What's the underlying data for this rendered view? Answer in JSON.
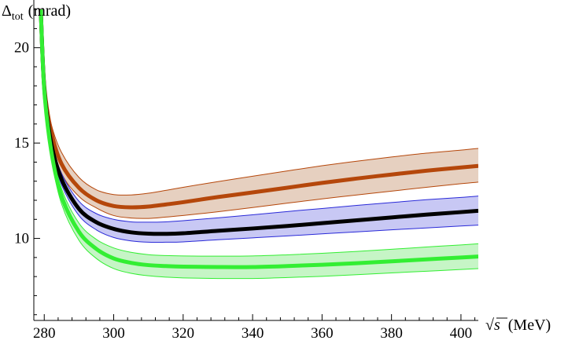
{
  "chart_data": {
    "type": "area",
    "title": "",
    "ylabel": {
      "main": "Δ",
      "sub": "tot",
      "units": "(mrad)"
    },
    "xlabel": {
      "main": "√s",
      "units": "(MeV)"
    },
    "xlim": [
      277,
      405
    ],
    "ylim": [
      5.7,
      22.5
    ],
    "xticks": [
      280,
      300,
      320,
      340,
      360,
      380,
      400
    ],
    "yticks": [
      10,
      15,
      20
    ],
    "x_tick_labels": [
      "280",
      "300",
      "320",
      "340",
      "360",
      "380",
      "400"
    ],
    "y_tick_labels": [
      "10",
      "15",
      "20"
    ],
    "x_minor_step": 4,
    "y_minor_step": 1,
    "grid": false,
    "legend": "none",
    "x": [
      279.0,
      280.0,
      282.0,
      285.0,
      290.0,
      295.0,
      300.0,
      305.0,
      310.0,
      315.0,
      320.0,
      330.0,
      340.0,
      350.0,
      360.0,
      370.0,
      380.0,
      390.0,
      400.0,
      405.0
    ],
    "series": [
      {
        "color": "#b5470b",
        "band_fill": "#e6d0c0",
        "values": [
          22.0,
          18.0,
          15.6,
          13.9,
          12.65,
          12.0,
          11.7,
          11.63,
          11.67,
          11.78,
          11.9,
          12.17,
          12.41,
          12.66,
          12.91,
          13.14,
          13.35,
          13.55,
          13.72,
          13.8
        ],
        "upper": [
          22.0,
          18.0,
          16.0,
          14.5,
          13.2,
          12.55,
          12.3,
          12.28,
          12.37,
          12.52,
          12.68,
          12.98,
          13.26,
          13.54,
          13.81,
          14.05,
          14.27,
          14.47,
          14.63,
          14.72
        ],
        "lower": [
          22.0,
          18.0,
          15.3,
          13.4,
          12.2,
          11.6,
          11.2,
          11.07,
          11.05,
          11.12,
          11.2,
          11.4,
          11.62,
          11.85,
          12.07,
          12.28,
          12.48,
          12.68,
          12.87,
          12.95
        ]
      },
      {
        "color": "#000000",
        "band_fill": "#c8c8f4",
        "values": [
          22.0,
          17.9,
          15.0,
          13.1,
          11.55,
          10.85,
          10.5,
          10.32,
          10.25,
          10.24,
          10.27,
          10.4,
          10.52,
          10.65,
          10.8,
          10.95,
          11.1,
          11.25,
          11.38,
          11.45
        ],
        "upper": [
          22.0,
          17.9,
          15.2,
          13.4,
          11.95,
          11.3,
          11.0,
          10.87,
          10.85,
          10.87,
          10.93,
          11.08,
          11.24,
          11.41,
          11.57,
          11.73,
          11.88,
          12.03,
          12.15,
          12.22
        ],
        "lower": [
          22.0,
          17.9,
          14.8,
          12.8,
          11.2,
          10.45,
          10.05,
          9.87,
          9.8,
          9.8,
          9.82,
          9.93,
          10.03,
          10.13,
          10.24,
          10.34,
          10.45,
          10.55,
          10.65,
          10.7
        ]
      },
      {
        "color": "#33ee33",
        "band_fill": "#c6f5c6",
        "values": [
          22.0,
          17.8,
          14.6,
          12.2,
          10.35,
          9.45,
          8.95,
          8.72,
          8.6,
          8.55,
          8.52,
          8.5,
          8.5,
          8.55,
          8.62,
          8.7,
          8.8,
          8.9,
          9.0,
          9.05
        ],
        "upper": [
          22.0,
          17.8,
          14.9,
          12.6,
          10.8,
          9.95,
          9.5,
          9.27,
          9.15,
          9.1,
          9.08,
          9.07,
          9.08,
          9.14,
          9.22,
          9.32,
          9.43,
          9.55,
          9.66,
          9.72
        ],
        "lower": [
          22.0,
          17.8,
          14.3,
          11.8,
          9.9,
          8.95,
          8.42,
          8.17,
          8.04,
          7.97,
          7.93,
          7.9,
          7.9,
          7.95,
          8.01,
          8.1,
          8.19,
          8.28,
          8.37,
          8.42
        ]
      }
    ]
  }
}
